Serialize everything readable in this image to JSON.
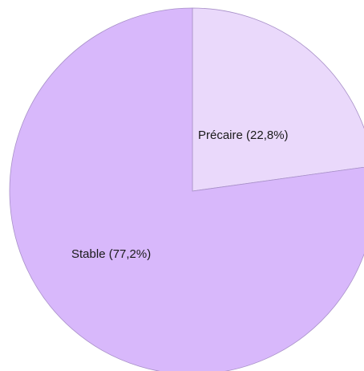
{
  "chart_data": {
    "type": "pie",
    "slices": [
      {
        "label": "Précaire (22,8%)",
        "value": 22.8,
        "color": "#ead9fb"
      },
      {
        "label": "Stable (77,2%)",
        "value": 77.2,
        "color": "#d8b8fb"
      }
    ],
    "stroke_color": "#a890c8",
    "start": "12 o'clock",
    "direction": "clockwise"
  }
}
